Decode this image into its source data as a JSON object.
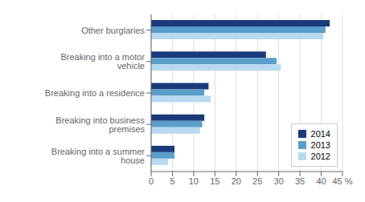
{
  "chart_data": {
    "type": "bar",
    "orientation": "horizontal",
    "categories": [
      "Breaking into a summer house",
      "Breaking into business premises",
      "Breaking into a residence",
      "Breaking into a motor vehicle",
      "Other burglaries"
    ],
    "series": [
      {
        "name": "2014",
        "color": "#1a3a7a",
        "values": [
          5.5,
          12.5,
          13.5,
          27.0,
          42.0
        ]
      },
      {
        "name": "2013",
        "color": "#5b9eca",
        "values": [
          5.5,
          12.0,
          12.5,
          29.5,
          41.0
        ]
      },
      {
        "name": "2012",
        "color": "#b8d9ef",
        "values": [
          4.0,
          11.5,
          14.0,
          30.5,
          40.5
        ]
      }
    ],
    "xlim": [
      0,
      45
    ],
    "xticks": [
      0,
      5,
      10,
      15,
      20,
      25,
      30,
      35,
      40,
      {
        "value": 45,
        "label": "45 %"
      }
    ],
    "grid": true,
    "legend": "lower right"
  }
}
